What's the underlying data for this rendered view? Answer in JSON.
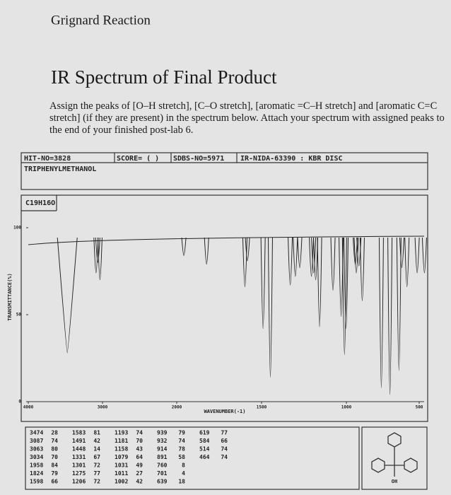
{
  "header": {
    "title": "Grignard Reaction"
  },
  "section": {
    "heading": "IR Spectrum of Final Product",
    "instructions": "Assign the peaks of [O–H stretch], [C–O stretch], [aromatic =C–H stretch] and [aromatic C=C stretch] (if they are present) in the spectrum below. Attach your spectrum with assigned peaks to the end of your finished post-lab 6."
  },
  "spectrum": {
    "hit_no": "HIT-NO=3828",
    "score": "SCORE= (    )",
    "sdbs_no": "SDBS-NO=5971",
    "source": "IR-NIDA-63390 : KBR DISC",
    "compound": "TRIPHENYLMETHANOL",
    "formula": "C19H16O",
    "y_label": "TRANSMITTANCE(%)",
    "x_label": "WAVENUMBER(-1)",
    "xlim": [
      4000,
      400
    ],
    "xticks": [
      4000,
      3000,
      2000,
      1500,
      1000,
      500
    ],
    "ylim": [
      0,
      100
    ],
    "yticks": [
      100,
      50,
      0
    ],
    "peaks": [
      [
        [
          3474,
          28
        ],
        [
          3087,
          74
        ],
        [
          3063,
          80
        ],
        [
          3034,
          70
        ],
        [
          1958,
          84
        ],
        [
          1824,
          79
        ],
        [
          1598,
          66
        ]
      ],
      [
        [
          1583,
          81
        ],
        [
          1491,
          42
        ],
        [
          1448,
          14
        ],
        [
          1331,
          67
        ],
        [
          1301,
          72
        ],
        [
          1275,
          77
        ],
        [
          1206,
          72
        ]
      ],
      [
        [
          1193,
          74
        ],
        [
          1181,
          70
        ],
        [
          1158,
          43
        ],
        [
          1079,
          64
        ],
        [
          1031,
          49
        ],
        [
          1011,
          27
        ],
        [
          1002,
          42
        ]
      ],
      [
        [
          939,
          79
        ],
        [
          932,
          74
        ],
        [
          914,
          78
        ],
        [
          891,
          58
        ],
        [
          760,
          8
        ],
        [
          701,
          4
        ],
        [
          639,
          18
        ]
      ],
      [
        [
          619,
          77
        ],
        [
          584,
          66
        ],
        [
          514,
          74
        ],
        [
          464,
          74
        ]
      ]
    ],
    "structure_label": "OH"
  }
}
